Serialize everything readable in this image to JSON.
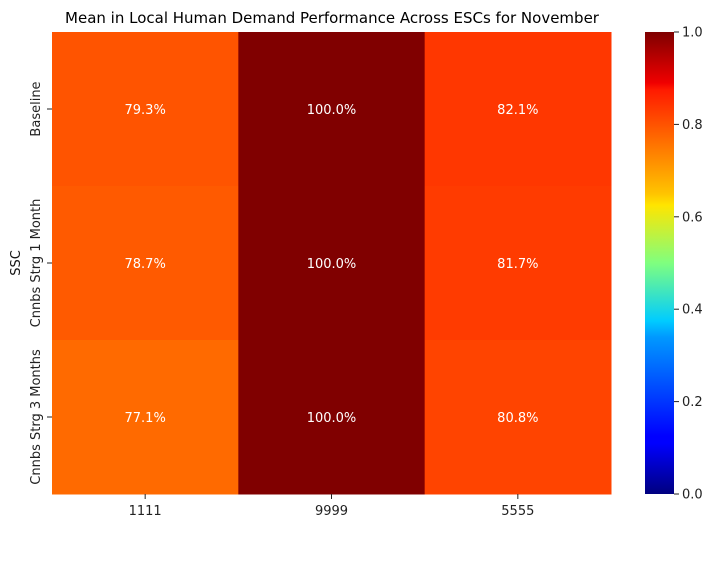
{
  "chart_data": {
    "type": "heatmap",
    "title": "Mean in Local Human Demand Performance Across ESCs for November",
    "xlabel": "",
    "ylabel": "SSC",
    "x_categories": [
      "1111",
      "9999",
      "5555"
    ],
    "y_categories": [
      "Baseline",
      "Cnnbs Strg 1 Month",
      "Cnnbs Strg 3 Months"
    ],
    "values": [
      [
        0.793,
        1.0,
        0.821
      ],
      [
        0.787,
        1.0,
        0.817
      ],
      [
        0.771,
        1.0,
        0.808
      ]
    ],
    "cell_labels": [
      [
        "79.3%",
        "100.0%",
        "82.1%"
      ],
      [
        "78.7%",
        "100.0%",
        "81.7%"
      ],
      [
        "77.1%",
        "100.0%",
        "80.8%"
      ]
    ],
    "colormap": "jet",
    "colorbar": {
      "range": [
        0,
        1
      ],
      "ticks": [
        0.0,
        0.2,
        0.4,
        0.6,
        0.8,
        1.0
      ],
      "tick_labels": [
        "0.0",
        "0.2",
        "0.4",
        "0.6",
        "0.8",
        "1.0"
      ]
    },
    "grid": false
  }
}
